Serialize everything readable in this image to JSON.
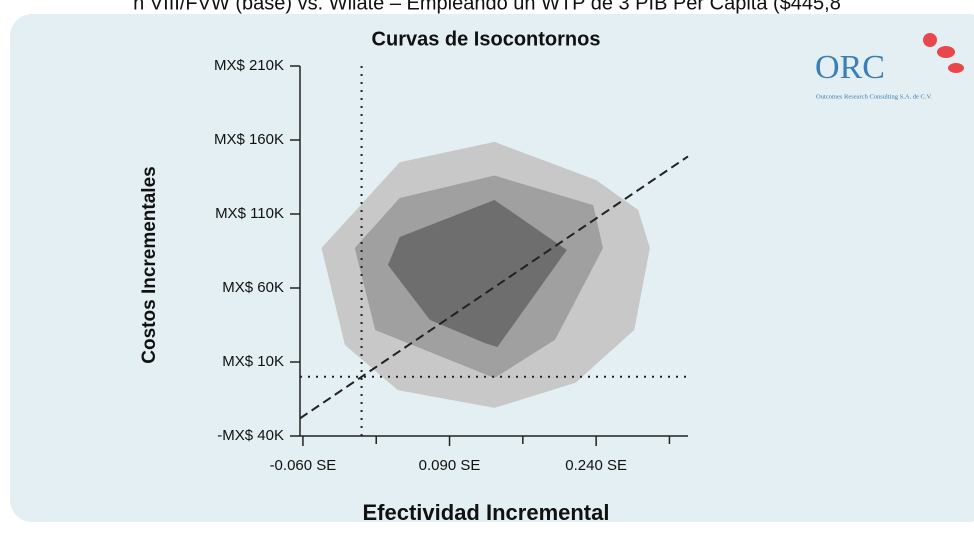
{
  "caption": "n VIII/FVW (base) vs. Wilate – Empleando un WTP de 3 PIB Per Cápita ($445,8",
  "logo": {
    "name": "ORC",
    "tagline": "Outcomes Research Consulting S.A. de C.V."
  },
  "chart_data": {
    "type": "contour",
    "title": "Curvas de Isocontornos",
    "x_label": "Efectividad Incremental",
    "y_label": "Costos Incrementales",
    "xlim": [
      -0.063,
      0.334
    ],
    "ylim": [
      -40000,
      210000
    ],
    "xticks": [
      {
        "value": -0.06,
        "label": "-0.060 SE"
      },
      {
        "value": 0.09,
        "label": "0.090 SE"
      },
      {
        "value": 0.24,
        "label": "0.240 SE"
      }
    ],
    "xminorticks": [
      0.015,
      0.165,
      0.315
    ],
    "yticks": [
      {
        "value": -40000,
        "label": "-MX$ 40K"
      },
      {
        "value": 10000,
        "label": "MX$ 10K"
      },
      {
        "value": 60000,
        "label": "MX$ 60K"
      },
      {
        "value": 110000,
        "label": "MX$ 110K"
      },
      {
        "value": 160000,
        "label": "MX$ 160K"
      },
      {
        "value": 210000,
        "label": "MX$ 210K"
      }
    ],
    "series": [
      {
        "color": "#c8c8c8",
        "x": [
          -0.041,
          -0.017,
          0.037,
          0.136,
          0.219,
          0.279,
          0.295,
          0.283,
          0.24,
          0.136,
          0.039
        ],
        "values": [
          87000,
          21500,
          -9000,
          -21000,
          -4000,
          31600,
          87000,
          112700,
          133000,
          158700,
          145000
        ]
      },
      {
        "color": "#a0a0a0",
        "x": [
          -0.007,
          0.014,
          0.136,
          0.198,
          0.247,
          0.237,
          0.136,
          0.039
        ],
        "values": [
          87000,
          31600,
          -800,
          25000,
          87000,
          116000,
          136000,
          120800
        ]
      },
      {
        "color": "#6e6e6e",
        "x": [
          0.027,
          0.07,
          0.126,
          0.139,
          0.21,
          0.136,
          0.039
        ],
        "values": [
          75500,
          38400,
          22800,
          20100,
          85700,
          119500,
          94500
        ]
      }
    ],
    "reference_lines": [
      {
        "axis": "x",
        "value": 0
      },
      {
        "axis": "y",
        "value": 0
      }
    ],
    "threshold_line": {
      "x": [
        -0.063,
        0.334
      ],
      "values": [
        -28085,
        148900
      ]
    }
  }
}
